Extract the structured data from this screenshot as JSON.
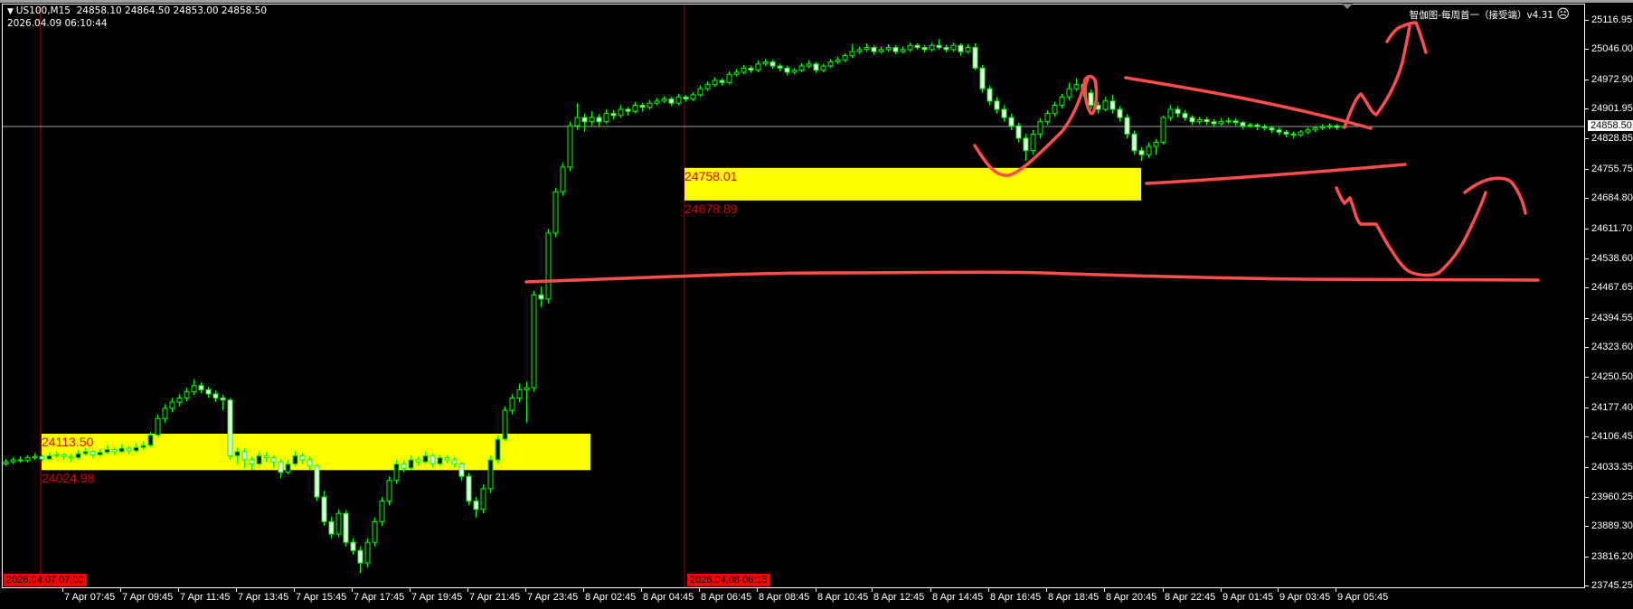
{
  "header": {
    "symbol_line": "US100,M15  24858.10 24864.50 24853.00 24858.50",
    "server_time": "2026.04.09 06:10:44",
    "menu_icon": "triangle-down-icon"
  },
  "indicator": {
    "label": "智伽图-每周首一（接受端）v4.31",
    "status_icon": "sad-face-icon",
    "status_glyph": "☹"
  },
  "chart_data": {
    "type": "candlestick",
    "symbol": "US100",
    "timeframe": "M15",
    "ohlc_format": [
      "open",
      "high",
      "low",
      "close"
    ],
    "ohlc": [
      [
        24040,
        24052,
        24035,
        24045
      ],
      [
        24045,
        24056,
        24040,
        24050
      ],
      [
        24050,
        24058,
        24042,
        24048
      ],
      [
        24048,
        24062,
        24044,
        24055
      ],
      [
        24055,
        24066,
        24050,
        24058
      ],
      [
        24058,
        24063,
        24046,
        24052
      ],
      [
        24052,
        24068,
        24048,
        24060
      ],
      [
        24060,
        24070,
        24055,
        24062
      ],
      [
        24062,
        24067,
        24050,
        24058
      ],
      [
        24058,
        24064,
        24045,
        24055
      ],
      [
        24055,
        24075,
        24050,
        24065
      ],
      [
        24065,
        24078,
        24060,
        24070
      ],
      [
        24070,
        24074,
        24055,
        24062
      ],
      [
        24062,
        24076,
        24058,
        24068
      ],
      [
        24068,
        24085,
        24064,
        24075
      ],
      [
        24075,
        24080,
        24062,
        24070
      ],
      [
        24070,
        24088,
        24066,
        24078
      ],
      [
        24078,
        24083,
        24064,
        24072
      ],
      [
        24072,
        24090,
        24068,
        24080
      ],
      [
        24080,
        24095,
        24074,
        24085
      ],
      [
        24085,
        24118,
        24080,
        24110
      ],
      [
        24110,
        24160,
        24105,
        24150
      ],
      [
        24150,
        24185,
        24140,
        24175
      ],
      [
        24175,
        24200,
        24165,
        24190
      ],
      [
        24190,
        24210,
        24180,
        24200
      ],
      [
        24200,
        24225,
        24192,
        24215
      ],
      [
        24215,
        24245,
        24208,
        24230
      ],
      [
        24230,
        24238,
        24212,
        24220
      ],
      [
        24220,
        24228,
        24200,
        24210
      ],
      [
        24210,
        24218,
        24190,
        24200
      ],
      [
        24200,
        24208,
        24170,
        24195
      ],
      [
        24195,
        24200,
        24050,
        24060
      ],
      [
        24060,
        24080,
        24040,
        24070
      ],
      [
        24070,
        24078,
        24030,
        24050
      ],
      [
        24050,
        24058,
        24025,
        24040
      ],
      [
        24040,
        24070,
        24035,
        24060
      ],
      [
        24060,
        24068,
        24045,
        24055
      ],
      [
        24055,
        24060,
        24030,
        24045
      ],
      [
        24045,
        24052,
        24005,
        24020
      ],
      [
        24020,
        24050,
        24015,
        24040
      ],
      [
        24040,
        24072,
        24035,
        24060
      ],
      [
        24060,
        24066,
        24040,
        24050
      ],
      [
        24050,
        24058,
        24025,
        24035
      ],
      [
        24035,
        24040,
        23950,
        23960
      ],
      [
        23960,
        23975,
        23890,
        23900
      ],
      [
        23900,
        23912,
        23860,
        23870
      ],
      [
        23870,
        23930,
        23862,
        23920
      ],
      [
        23920,
        23928,
        23840,
        23850
      ],
      [
        23850,
        23860,
        23820,
        23830
      ],
      [
        23830,
        23840,
        23775,
        23800
      ],
      [
        23800,
        23860,
        23790,
        23850
      ],
      [
        23850,
        23910,
        23840,
        23900
      ],
      [
        23900,
        23960,
        23890,
        23950
      ],
      [
        23950,
        24010,
        23940,
        24000
      ],
      [
        24000,
        24050,
        23992,
        24040
      ],
      [
        24040,
        24048,
        24020,
        24030
      ],
      [
        24030,
        24060,
        24025,
        24050
      ],
      [
        24050,
        24058,
        24035,
        24045
      ],
      [
        24045,
        24070,
        24040,
        24060
      ],
      [
        24060,
        24065,
        24032,
        24040
      ],
      [
        24040,
        24062,
        24035,
        24055
      ],
      [
        24055,
        24062,
        24042,
        24050
      ],
      [
        24050,
        24056,
        24030,
        24040
      ],
      [
        24040,
        24045,
        24000,
        24010
      ],
      [
        24010,
        24018,
        23940,
        23950
      ],
      [
        23950,
        23960,
        23910,
        23930
      ],
      [
        23930,
        23990,
        23920,
        23980
      ],
      [
        23980,
        24060,
        23970,
        24050
      ],
      [
        24050,
        24110,
        24040,
        24100
      ],
      [
        24100,
        24180,
        24095,
        24170
      ],
      [
        24170,
        24210,
        24160,
        24200
      ],
      [
        24200,
        24235,
        24190,
        24220
      ],
      [
        24220,
        24240,
        24140,
        24225
      ],
      [
        24225,
        24460,
        24215,
        24450
      ],
      [
        24450,
        24470,
        24420,
        24440
      ],
      [
        24440,
        24610,
        24430,
        24600
      ],
      [
        24600,
        24710,
        24590,
        24700
      ],
      [
        24700,
        24770,
        24690,
        24760
      ],
      [
        24760,
        24870,
        24750,
        24860
      ],
      [
        24860,
        24915,
        24850,
        24880
      ],
      [
        24880,
        24890,
        24845,
        24870
      ],
      [
        24870,
        24895,
        24860,
        24880
      ],
      [
        24880,
        24888,
        24858,
        24870
      ],
      [
        24870,
        24900,
        24865,
        24890
      ],
      [
        24890,
        24898,
        24875,
        24885
      ],
      [
        24885,
        24910,
        24880,
        24900
      ],
      [
        24900,
        24905,
        24885,
        24895
      ],
      [
        24895,
        24918,
        24890,
        24910
      ],
      [
        24910,
        24915,
        24895,
        24905
      ],
      [
        24905,
        24922,
        24900,
        24915
      ],
      [
        24915,
        24928,
        24910,
        24920
      ],
      [
        24920,
        24932,
        24915,
        24925
      ],
      [
        24925,
        24930,
        24908,
        24915
      ],
      [
        24915,
        24938,
        24910,
        24930
      ],
      [
        24930,
        24935,
        24918,
        24925
      ],
      [
        24925,
        24942,
        24920,
        24935
      ],
      [
        24935,
        24958,
        24930,
        24950
      ],
      [
        24950,
        24968,
        24945,
        24960
      ],
      [
        24960,
        24978,
        24955,
        24970
      ],
      [
        24970,
        24975,
        24958,
        24965
      ],
      [
        24965,
        24992,
        24960,
        24985
      ],
      [
        24985,
        24998,
        24980,
        24990
      ],
      [
        24990,
        25008,
        24985,
        25000
      ],
      [
        25000,
        25006,
        24988,
        24995
      ],
      [
        24995,
        25018,
        24990,
        25010
      ],
      [
        25010,
        25022,
        25005,
        25015
      ],
      [
        25015,
        25020,
        24998,
        25005
      ],
      [
        25005,
        25010,
        24992,
        25000
      ],
      [
        25000,
        25006,
        24982,
        24990
      ],
      [
        24990,
        25000,
        24985,
        24995
      ],
      [
        24995,
        25012,
        24990,
        25005
      ],
      [
        25005,
        25018,
        25000,
        25010
      ],
      [
        25010,
        25015,
        24988,
        24995
      ],
      [
        24995,
        25010,
        24990,
        25005
      ],
      [
        25005,
        25022,
        25000,
        25015
      ],
      [
        25015,
        25028,
        25010,
        25020
      ],
      [
        25020,
        25036,
        25015,
        25030
      ],
      [
        25030,
        25058,
        25025,
        25040
      ],
      [
        25040,
        25052,
        25035,
        25045
      ],
      [
        25045,
        25060,
        25040,
        25050
      ],
      [
        25050,
        25055,
        25032,
        25040
      ],
      [
        25040,
        25052,
        25035,
        25045
      ],
      [
        25045,
        25058,
        25040,
        25050
      ],
      [
        25050,
        25055,
        25034,
        25040
      ],
      [
        25040,
        25052,
        25035,
        25045
      ],
      [
        25045,
        25062,
        25040,
        25055
      ],
      [
        25055,
        25060,
        25045,
        25050
      ],
      [
        25050,
        25055,
        25038,
        25045
      ],
      [
        25045,
        25062,
        25040,
        25055
      ],
      [
        25055,
        25070,
        25045,
        25050
      ],
      [
        25050,
        25056,
        25038,
        25045
      ],
      [
        25045,
        25062,
        25040,
        25055
      ],
      [
        25055,
        25060,
        25030,
        25040
      ],
      [
        25040,
        25058,
        25035,
        25050
      ],
      [
        25050,
        25060,
        24995,
        25000
      ],
      [
        25000,
        25008,
        24940,
        24950
      ],
      [
        24950,
        24958,
        24910,
        24920
      ],
      [
        24920,
        24930,
        24890,
        24900
      ],
      [
        24900,
        24910,
        24870,
        24880
      ],
      [
        24880,
        24890,
        24850,
        24860
      ],
      [
        24860,
        24868,
        24820,
        24830
      ],
      [
        24830,
        24840,
        24775,
        24800
      ],
      [
        24800,
        24850,
        24790,
        24840
      ],
      [
        24840,
        24878,
        24830,
        24870
      ],
      [
        24870,
        24898,
        24862,
        24890
      ],
      [
        24890,
        24918,
        24882,
        24910
      ],
      [
        24910,
        24938,
        24902,
        24930
      ],
      [
        24930,
        24965,
        24922,
        24950
      ],
      [
        24950,
        24975,
        24945,
        24960
      ],
      [
        24960,
        24968,
        24930,
        24940
      ],
      [
        24940,
        24948,
        24900,
        24910
      ],
      [
        24910,
        24918,
        24890,
        24900
      ],
      [
        24900,
        24930,
        24895,
        24920
      ],
      [
        24920,
        24935,
        24890,
        24900
      ],
      [
        24900,
        24908,
        24870,
        24880
      ],
      [
        24880,
        24888,
        24830,
        24840
      ],
      [
        24840,
        24848,
        24790,
        24800
      ],
      [
        24800,
        24808,
        24775,
        24790
      ],
      [
        24790,
        24820,
        24782,
        24810
      ],
      [
        24810,
        24828,
        24790,
        24820
      ],
      [
        24820,
        24885,
        24815,
        24880
      ],
      [
        24880,
        24910,
        24872,
        24900
      ],
      [
        24900,
        24908,
        24880,
        24890
      ],
      [
        24890,
        24898,
        24872,
        24880
      ],
      [
        24880,
        24886,
        24862,
        24870
      ],
      [
        24870,
        24882,
        24864,
        24875
      ],
      [
        24875,
        24880,
        24862,
        24870
      ],
      [
        24870,
        24876,
        24858,
        24865
      ],
      [
        24865,
        24878,
        24860,
        24870
      ],
      [
        24870,
        24880,
        24865,
        24872
      ],
      [
        24872,
        24878,
        24860,
        24868
      ],
      [
        24868,
        24872,
        24852,
        24860
      ],
      [
        24860,
        24868,
        24855,
        24862
      ],
      [
        24862,
        24866,
        24850,
        24858
      ],
      [
        24858,
        24864,
        24848,
        24855
      ],
      [
        24855,
        24860,
        24842,
        24850
      ],
      [
        24850,
        24856,
        24838,
        24845
      ],
      [
        24845,
        24850,
        24832,
        24840
      ],
      [
        24840,
        24846,
        24830,
        24838
      ],
      [
        24838,
        24850,
        24834,
        24845
      ],
      [
        24845,
        24856,
        24840,
        24850
      ],
      [
        24850,
        24860,
        24845,
        24855
      ],
      [
        24855,
        24864,
        24850,
        24858
      ],
      [
        24858,
        24866,
        24852,
        24860
      ],
      [
        24860,
        24864,
        24850,
        24856
      ],
      [
        24858.1,
        24864.5,
        24853,
        24858.5
      ]
    ],
    "ylim": [
      23745.25,
      25116.95
    ],
    "y_ticks": [
      "25116.95",
      "25046.00",
      "24972.90",
      "24901.95",
      "24828.85",
      "24755.75",
      "24684.80",
      "24611.70",
      "24538.60",
      "24467.65",
      "24394.55",
      "24323.60",
      "24250.50",
      "24177.40",
      "24106.45",
      "24033.35",
      "23960.25",
      "23889.30",
      "23816.20",
      "23745.25"
    ],
    "x_ticks": [
      "7 Apr 07:45",
      "7 Apr 09:45",
      "7 Apr 11:45",
      "7 Apr 13:45",
      "7 Apr 15:45",
      "7 Apr 17:45",
      "7 Apr 19:45",
      "7 Apr 21:45",
      "7 Apr 23:45",
      "8 Apr 02:45",
      "8 Apr 04:45",
      "8 Apr 06:45",
      "8 Apr 08:45",
      "8 Apr 10:45",
      "8 Apr 12:45",
      "8 Apr 14:45",
      "8 Apr 16:45",
      "8 Apr 18:45",
      "8 Apr 20:45",
      "8 Apr 22:45",
      "9 Apr 01:45",
      "9 Apr 03:45",
      "9 Apr 05:45"
    ],
    "period_markers": [
      "2026.04.07 07:00",
      "2026.04.08 06:15"
    ],
    "current_price": "24858.50",
    "zones": [
      {
        "top": 24113.5,
        "bottom": 24024.98,
        "top_label": "24113.50",
        "bottom_label": "24024.98"
      },
      {
        "top": 24758.01,
        "bottom": 24678.89,
        "top_label": "24758.01",
        "bottom_label": "24678.89"
      }
    ],
    "grid": false,
    "colors": {
      "background": "#000000",
      "candle_outline": "#00ff00",
      "bull_body": "#000000",
      "bear_body": "#ffffff",
      "zone_fill": "#ffff00",
      "zone_label": "#e00000",
      "annotation": "#ff4d4d",
      "bid_line": "#a0a0a0"
    }
  }
}
